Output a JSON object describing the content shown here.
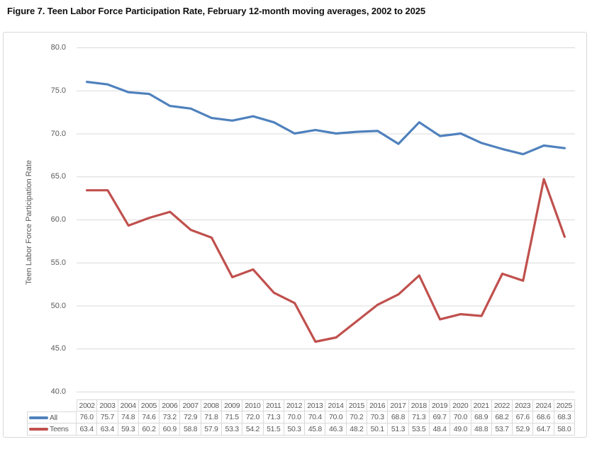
{
  "title": "Figure 7. Teen Labor Force Participation Rate, February 12-month moving averages, 2002 to 2025",
  "chart_data": {
    "type": "line",
    "title": "Figure 7. Teen Labor Force Participation Rate, February 12-month moving averages, 2002 to 2025",
    "xlabel": "",
    "ylabel": "Teen Labor Force Participation Rate",
    "ylim": [
      40,
      80
    ],
    "ytick_step": 5,
    "yticks": [
      "80.0",
      "75.0",
      "70.0",
      "65.0",
      "60.0",
      "55.0",
      "50.0",
      "45.0",
      "40.0"
    ],
    "grid": true,
    "legend_position": "data-table-left",
    "categories": [
      "2002",
      "2003",
      "2004",
      "2005",
      "2006",
      "2007",
      "2008",
      "2009",
      "2010",
      "2011",
      "2012",
      "2013",
      "2014",
      "2015",
      "2016",
      "2017",
      "2018",
      "2019",
      "2020",
      "2021",
      "2022",
      "2023",
      "2024",
      "2025"
    ],
    "series": [
      {
        "name": "All",
        "color": "#4F81BD",
        "values": [
          76.0,
          75.7,
          74.8,
          74.6,
          73.2,
          72.9,
          71.8,
          71.5,
          72.0,
          71.3,
          70.0,
          70.4,
          70.0,
          70.2,
          70.3,
          68.8,
          71.3,
          69.7,
          70.0,
          68.9,
          68.2,
          67.6,
          68.6,
          68.3
        ]
      },
      {
        "name": "Teens",
        "color": "#C0504D",
        "values": [
          63.4,
          63.4,
          59.3,
          60.2,
          60.9,
          58.8,
          57.9,
          53.3,
          54.2,
          51.5,
          50.3,
          45.8,
          46.3,
          48.2,
          50.1,
          51.3,
          53.5,
          48.4,
          49.0,
          48.8,
          53.7,
          52.9,
          64.7,
          58.0
        ]
      }
    ]
  }
}
